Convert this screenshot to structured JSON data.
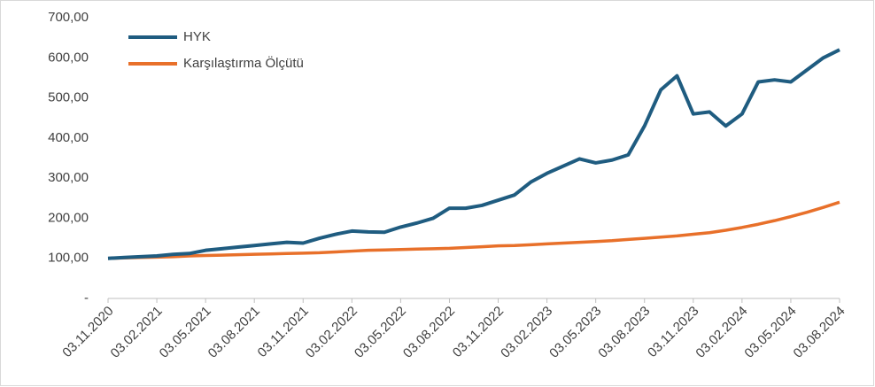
{
  "chart_data": {
    "type": "line",
    "categories": [
      "03.11.2020",
      null,
      null,
      "03.02.2021",
      null,
      null,
      "03.05.2021",
      null,
      null,
      "03.08.2021",
      null,
      null,
      "03.11.2021",
      null,
      null,
      "03.02.2022",
      null,
      null,
      "03.05.2022",
      null,
      null,
      "03.08.2022",
      null,
      null,
      "03.11.2022",
      null,
      null,
      "03.02.2023",
      null,
      null,
      "03.05.2023",
      null,
      null,
      "03.08.2023",
      null,
      null,
      "03.11.2023",
      null,
      null,
      "03.02.2024",
      null,
      null,
      "03.05.2024",
      null,
      null,
      "03.08.2024"
    ],
    "series": [
      {
        "name": "HYK",
        "color": "#1f5c80",
        "values": [
          100,
          102,
          104,
          106,
          110,
          112,
          120,
          124,
          128,
          132,
          136,
          140,
          138,
          150,
          160,
          168,
          166,
          165,
          178,
          188,
          200,
          225,
          225,
          232,
          245,
          258,
          290,
          312,
          330,
          348,
          338,
          345,
          358,
          430,
          520,
          555,
          460,
          465,
          430,
          460,
          540,
          545,
          540,
          570,
          600,
          620
        ]
      },
      {
        "name": "Karşılaştırma Ölçütü",
        "color": "#e8702a",
        "values": [
          100,
          101,
          102,
          103,
          104,
          106,
          107,
          108,
          109,
          110,
          111,
          112,
          113,
          114,
          116,
          118,
          120,
          121,
          122,
          123,
          124,
          125,
          127,
          129,
          131,
          132,
          134,
          136,
          138,
          140,
          142,
          144,
          147,
          150,
          153,
          156,
          160,
          164,
          170,
          177,
          185,
          194,
          204,
          215,
          227,
          240
        ]
      }
    ],
    "ylim": [
      0,
      700
    ],
    "yticks": [
      {
        "value": 0,
        "label": "-"
      },
      {
        "value": 100,
        "label": "100,00"
      },
      {
        "value": 200,
        "label": "200,00"
      },
      {
        "value": 300,
        "label": "300,00"
      },
      {
        "value": 400,
        "label": "400,00"
      },
      {
        "value": 500,
        "label": "500,00"
      },
      {
        "value": 600,
        "label": "600,00"
      },
      {
        "value": 700,
        "label": "700,00"
      }
    ],
    "grid": false,
    "legend": "upper left"
  }
}
